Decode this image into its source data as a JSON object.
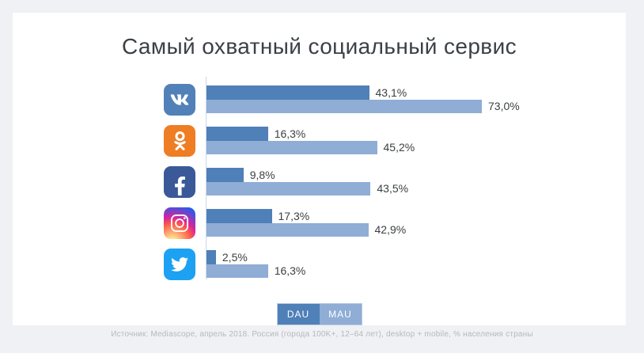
{
  "title": "Самый охватный социальный сервис",
  "chart_data": {
    "type": "bar",
    "orientation": "horizontal",
    "title": "Самый охватный социальный сервис",
    "categories": [
      "ВКонтакте",
      "Одноклассники",
      "Facebook",
      "Instagram",
      "Twitter"
    ],
    "icons": [
      "vk-icon",
      "ok-icon",
      "facebook-icon",
      "instagram-icon",
      "twitter-icon"
    ],
    "icon_colors": [
      "#5181b8",
      "#ee7d24",
      "#3b5998",
      "instagram-gradient",
      "#1da1f2"
    ],
    "series": [
      {
        "name": "DAU",
        "color": "#4f80b8",
        "values": [
          43.1,
          16.3,
          9.8,
          17.3,
          2.5
        ],
        "labels": [
          "43,1%",
          "16,3%",
          "9,8%",
          "17,3%",
          "2,5%"
        ]
      },
      {
        "name": "MAU",
        "color": "#8fadd5",
        "values": [
          73.0,
          45.2,
          43.5,
          42.9,
          16.3
        ],
        "labels": [
          "73,0%",
          "45,2%",
          "43,5%",
          "42,9%",
          "16,3%"
        ]
      }
    ],
    "xlim": [
      0,
      80
    ],
    "grid": false,
    "legend_position": "bottom"
  },
  "legend": {
    "dau_label": "DAU",
    "mau_label": "MAU",
    "dau_color": "#4f80b8",
    "mau_color": "#8fadd5"
  },
  "footer": "Источник: Mediascope, апрель 2018. Россия (города 100K+, 12–64 лет), desktop + mobile, % населения страны",
  "colors": {
    "background": "#f0f1f4",
    "card": "#ffffff",
    "axis_line": "#ccd9ea",
    "title_text": "#3b4046",
    "value_text": "#3c4043",
    "footer_text": "#b4b8bd"
  }
}
